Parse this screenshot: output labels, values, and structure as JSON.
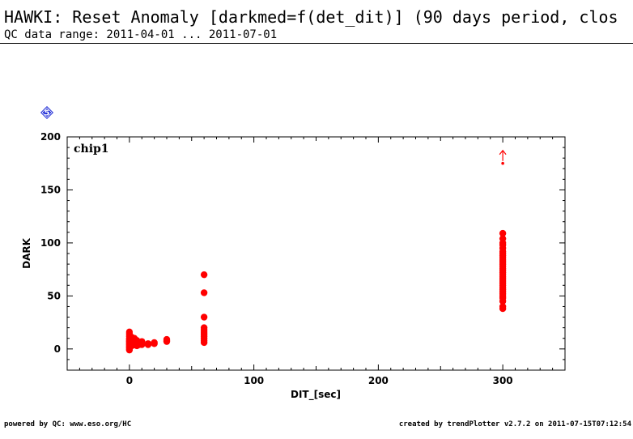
{
  "header": {
    "title": "HAWKI: Reset Anomaly [darkmed=f(det_dit)] (90 days period, clos",
    "subtitle": "QC data range: 2011-04-01 ... 2011-07-01"
  },
  "footer": {
    "left": "powered by QC: www.eso.org/HC",
    "right": "created by trendPlotter v2.7.2 on 2011-07-15T07:12:54"
  },
  "badge": {
    "label": "5",
    "icon": "diamond-icon",
    "color": "#1e2bd6"
  },
  "chart_data": {
    "type": "scatter",
    "panel_label": "chip1",
    "xlabel": "DIT_[sec]",
    "ylabel": "DARK",
    "xlim": [
      -50,
      350
    ],
    "ylim": [
      -20,
      200
    ],
    "xticks": [
      0,
      100,
      200,
      300
    ],
    "yticks": [
      0,
      50,
      100,
      150,
      200
    ],
    "grid": false,
    "point_color": "#ff0000",
    "outlier_marker": {
      "x": 300,
      "y": 175,
      "direction": "up"
    },
    "series": [
      {
        "points": [
          [
            0,
            -1
          ],
          [
            0,
            0
          ],
          [
            0,
            1
          ],
          [
            0,
            2
          ],
          [
            0,
            3
          ],
          [
            0,
            4
          ],
          [
            0,
            5
          ],
          [
            0,
            6
          ],
          [
            0,
            7
          ],
          [
            0,
            8
          ],
          [
            0,
            9
          ],
          [
            0,
            10
          ],
          [
            0,
            12
          ],
          [
            0,
            14
          ],
          [
            0,
            16
          ],
          [
            2,
            3
          ],
          [
            2,
            6
          ],
          [
            2,
            9
          ],
          [
            2,
            11
          ],
          [
            4,
            4
          ],
          [
            4,
            7
          ],
          [
            4,
            10
          ],
          [
            6,
            3
          ],
          [
            6,
            5
          ],
          [
            6,
            8
          ],
          [
            8,
            4
          ],
          [
            8,
            6
          ],
          [
            10,
            4
          ],
          [
            10,
            7
          ],
          [
            15,
            4
          ],
          [
            15,
            5
          ],
          [
            20,
            5
          ],
          [
            20,
            6
          ],
          [
            30,
            7
          ],
          [
            30,
            8
          ],
          [
            30,
            9
          ],
          [
            60,
            6
          ],
          [
            60,
            8
          ],
          [
            60,
            10
          ],
          [
            60,
            12
          ],
          [
            60,
            14
          ],
          [
            60,
            16
          ],
          [
            60,
            18
          ],
          [
            60,
            20
          ],
          [
            60,
            30
          ],
          [
            60,
            53
          ],
          [
            60,
            70
          ],
          [
            300,
            38
          ],
          [
            300,
            40
          ],
          [
            300,
            45
          ],
          [
            300,
            48
          ],
          [
            300,
            50
          ],
          [
            300,
            52
          ],
          [
            300,
            54
          ],
          [
            300,
            56
          ],
          [
            300,
            58
          ],
          [
            300,
            60
          ],
          [
            300,
            62
          ],
          [
            300,
            64
          ],
          [
            300,
            66
          ],
          [
            300,
            68
          ],
          [
            300,
            70
          ],
          [
            300,
            72
          ],
          [
            300,
            74
          ],
          [
            300,
            76
          ],
          [
            300,
            78
          ],
          [
            300,
            80
          ],
          [
            300,
            82
          ],
          [
            300,
            84
          ],
          [
            300,
            86
          ],
          [
            300,
            88
          ],
          [
            300,
            90
          ],
          [
            300,
            92
          ],
          [
            300,
            95
          ],
          [
            300,
            98
          ],
          [
            300,
            100
          ],
          [
            300,
            104
          ],
          [
            300,
            109
          ]
        ]
      }
    ]
  }
}
